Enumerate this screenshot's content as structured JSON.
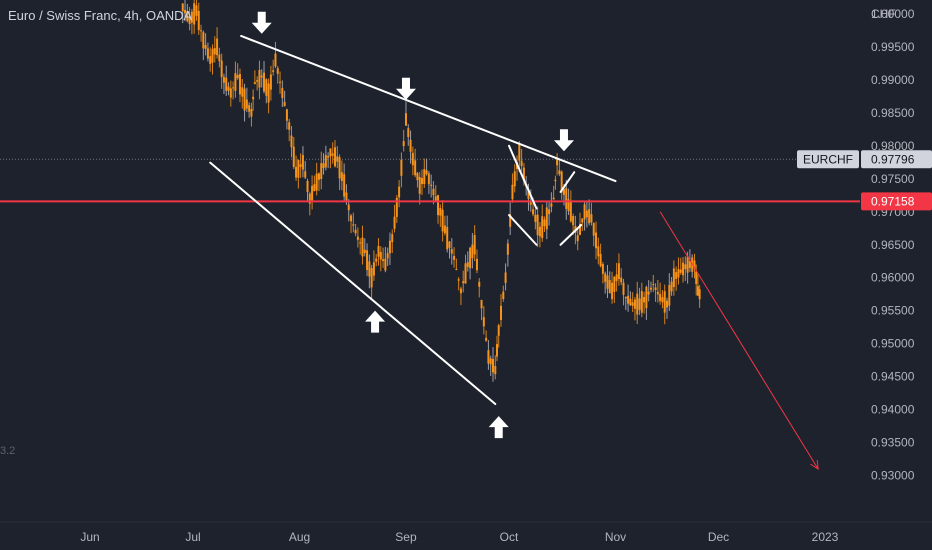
{
  "header": {
    "symbol_title": "Euro / Swiss Franc, 4h, OANDA",
    "currency": "CHF",
    "side_note": "3.2"
  },
  "chart_data": {
    "type": "candlestick",
    "y_axis_ticks": [
      "0.93000",
      "0.93500",
      "0.94000",
      "0.94500",
      "0.95000",
      "0.95500",
      "0.96000",
      "0.96500",
      "0.97000",
      "0.97500",
      "0.98000",
      "0.98500",
      "0.99000",
      "0.99500",
      "1.00000"
    ],
    "ylim": [
      0.926,
      1.0015
    ],
    "x_axis_ticks": [
      {
        "label": "Jun",
        "date": "2022-06-01"
      },
      {
        "label": "Jul",
        "date": "2022-07-01"
      },
      {
        "label": "Aug",
        "date": "2022-08-01"
      },
      {
        "label": "Sep",
        "date": "2022-09-01"
      },
      {
        "label": "Oct",
        "date": "2022-10-01"
      },
      {
        "label": "Nov",
        "date": "2022-11-01"
      },
      {
        "label": "Dec",
        "date": "2022-12-01"
      },
      {
        "label": "2023",
        "date": "2023-01-01"
      }
    ],
    "price_path": [
      [
        "2022-06-28",
        1.001
      ],
      [
        "2022-06-30",
        0.999
      ],
      [
        "2022-07-02",
        1.0005
      ],
      [
        "2022-07-04",
        0.996
      ],
      [
        "2022-07-06",
        0.993
      ],
      [
        "2022-07-08",
        0.995
      ],
      [
        "2022-07-10",
        0.99
      ],
      [
        "2022-07-12",
        0.988
      ],
      [
        "2022-07-14",
        0.9905
      ],
      [
        "2022-07-16",
        0.987
      ],
      [
        "2022-07-18",
        0.985
      ],
      [
        "2022-07-19",
        0.9895
      ],
      [
        "2022-07-21",
        0.9905
      ],
      [
        "2022-07-23",
        0.988
      ],
      [
        "2022-07-25",
        0.993
      ],
      [
        "2022-07-27",
        0.988
      ],
      [
        "2022-07-29",
        0.983
      ],
      [
        "2022-07-31",
        0.976
      ],
      [
        "2022-08-02",
        0.9775
      ],
      [
        "2022-08-04",
        0.972
      ],
      [
        "2022-08-06",
        0.9745
      ],
      [
        "2022-08-08",
        0.977
      ],
      [
        "2022-08-10",
        0.979
      ],
      [
        "2022-08-12",
        0.978
      ],
      [
        "2022-08-14",
        0.974
      ],
      [
        "2022-08-16",
        0.969
      ],
      [
        "2022-08-18",
        0.966
      ],
      [
        "2022-08-20",
        0.964
      ],
      [
        "2022-08-22",
        0.96
      ],
      [
        "2022-08-24",
        0.964
      ],
      [
        "2022-08-26",
        0.962
      ],
      [
        "2022-08-28",
        0.966
      ],
      [
        "2022-08-30",
        0.973
      ],
      [
        "2022-09-01",
        0.984
      ],
      [
        "2022-09-03",
        0.978
      ],
      [
        "2022-09-05",
        0.974
      ],
      [
        "2022-09-07",
        0.976
      ],
      [
        "2022-09-09",
        0.973
      ],
      [
        "2022-09-11",
        0.97
      ],
      [
        "2022-09-13",
        0.966
      ],
      [
        "2022-09-15",
        0.963
      ],
      [
        "2022-09-17",
        0.958
      ],
      [
        "2022-09-19",
        0.962
      ],
      [
        "2022-09-21",
        0.965
      ],
      [
        "2022-09-23",
        0.956
      ],
      [
        "2022-09-25",
        0.948
      ],
      [
        "2022-09-27",
        0.946
      ],
      [
        "2022-09-28",
        0.952
      ],
      [
        "2022-09-30",
        0.96
      ],
      [
        "2022-10-02",
        0.973
      ],
      [
        "2022-10-04",
        0.979
      ],
      [
        "2022-10-06",
        0.974
      ],
      [
        "2022-10-08",
        0.97
      ],
      [
        "2022-10-10",
        0.967
      ],
      [
        "2022-10-12",
        0.969
      ],
      [
        "2022-10-14",
        0.972
      ],
      [
        "2022-10-15",
        0.9775
      ],
      [
        "2022-10-17",
        0.973
      ],
      [
        "2022-10-19",
        0.97
      ],
      [
        "2022-10-21",
        0.966
      ],
      [
        "2022-10-23",
        0.97
      ],
      [
        "2022-10-25",
        0.969
      ],
      [
        "2022-10-27",
        0.964
      ],
      [
        "2022-10-29",
        0.96
      ],
      [
        "2022-10-31",
        0.958
      ],
      [
        "2022-11-02",
        0.961
      ],
      [
        "2022-11-04",
        0.957
      ],
      [
        "2022-11-06",
        0.956
      ],
      [
        "2022-11-08",
        0.956
      ],
      [
        "2022-11-10",
        0.957
      ],
      [
        "2022-11-12",
        0.959
      ],
      [
        "2022-11-14",
        0.957
      ],
      [
        "2022-11-16",
        0.956
      ],
      [
        "2022-11-18",
        0.96
      ],
      [
        "2022-11-20",
        0.961
      ],
      [
        "2022-11-22",
        0.962
      ],
      [
        "2022-11-24",
        0.962
      ],
      [
        "2022-11-25",
        0.958
      ],
      [
        "2022-11-26",
        0.957
      ]
    ],
    "current_price": {
      "symbol": "EURCHF",
      "value": "0.97796",
      "price": 0.97796
    },
    "horizontal_level": {
      "value": "0.97158",
      "price": 0.97158,
      "color": "#f23645"
    },
    "colors": {
      "candles": "#f7931a",
      "wicks": "#b2b5be",
      "trendlines": "#ffffff",
      "projection": "#f23645",
      "background": "#1e222d"
    },
    "trendlines": [
      {
        "name": "upper-resistance",
        "from": [
          "2022-07-15",
          0.99665
        ],
        "to": [
          "2022-11-01",
          0.97465
        ]
      },
      {
        "name": "lower-support",
        "from": [
          "2022-07-06",
          0.97745
        ],
        "to": [
          "2022-09-27",
          0.94085
        ]
      },
      {
        "name": "wedge-a",
        "from": [
          "2022-10-01",
          0.98
        ],
        "to": [
          "2022-10-09",
          0.9705
        ]
      },
      {
        "name": "wedge-b",
        "from": [
          "2022-10-01",
          0.9695
        ],
        "to": [
          "2022-10-09",
          0.965
        ]
      },
      {
        "name": "wedge-c",
        "from": [
          "2022-10-16",
          0.973
        ],
        "to": [
          "2022-10-20",
          0.976
        ]
      },
      {
        "name": "wedge-d",
        "from": [
          "2022-10-16",
          0.965
        ],
        "to": [
          "2022-10-22",
          0.968
        ]
      }
    ],
    "projection_arrow": {
      "from": [
        "2022-11-14",
        0.97
      ],
      "to": [
        "2022-12-30",
        0.931
      ]
    },
    "arrows": [
      {
        "name": "down-arrow-1",
        "direction": "down",
        "at": [
          "2022-07-21",
          0.9985
        ]
      },
      {
        "name": "down-arrow-2",
        "direction": "down",
        "at": [
          "2022-09-01",
          0.9885
        ]
      },
      {
        "name": "down-arrow-3",
        "direction": "down",
        "at": [
          "2022-10-17",
          0.9807
        ]
      },
      {
        "name": "up-arrow-1",
        "direction": "up",
        "at": [
          "2022-08-23",
          0.9535
        ]
      },
      {
        "name": "up-arrow-2",
        "direction": "up",
        "at": [
          "2022-09-28",
          0.9375
        ]
      }
    ]
  }
}
